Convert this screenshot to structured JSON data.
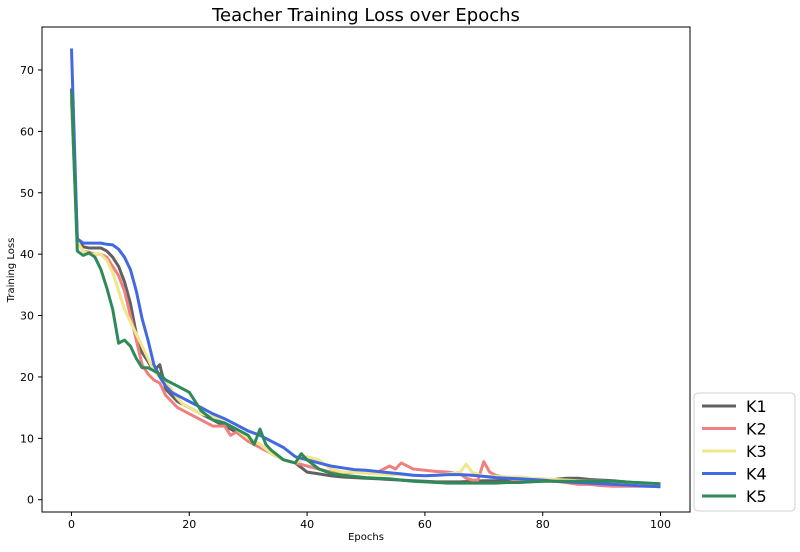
{
  "chart_data": {
    "type": "line",
    "title": "Teacher Training Loss over Epochs",
    "xlabel": "Epochs",
    "ylabel": "Training Loss",
    "xlim": [
      -5,
      105
    ],
    "ylim": [
      -2,
      77
    ],
    "xticks": [
      0,
      20,
      40,
      60,
      80,
      100
    ],
    "yticks": [
      0,
      10,
      20,
      30,
      40,
      50,
      60,
      70
    ],
    "grid": false,
    "legend_position": "lower-right-outside",
    "series": [
      {
        "name": "K1",
        "color": "#616161",
        "x": [
          0,
          1,
          2,
          3,
          4,
          5,
          6,
          7,
          8,
          9,
          10,
          11,
          12,
          13,
          14,
          15,
          16,
          17,
          18,
          19,
          20,
          22,
          24,
          26,
          28,
          30,
          32,
          34,
          36,
          38,
          40,
          42,
          44,
          46,
          48,
          50,
          52,
          54,
          56,
          58,
          60,
          62,
          64,
          66,
          68,
          70,
          72,
          74,
          76,
          78,
          80,
          82,
          84,
          86,
          88,
          90,
          92,
          94,
          96,
          98,
          100
        ],
        "y": [
          67,
          42.5,
          41.2,
          41,
          41,
          41,
          40.5,
          39.5,
          38,
          35.5,
          32,
          27,
          24,
          22.5,
          21,
          22,
          18,
          17,
          16,
          15.5,
          15,
          14,
          13,
          12,
          11,
          10,
          9,
          7.5,
          6.5,
          6,
          4.5,
          4.2,
          3.9,
          3.7,
          3.6,
          3.5,
          3.4,
          3.3,
          3.2,
          3.1,
          3,
          2.9,
          2.9,
          2.9,
          3,
          3.1,
          3.1,
          3.2,
          3.2,
          3.3,
          3.3,
          3.3,
          3.5,
          3.5,
          3.3,
          3.2,
          3.1,
          2.9,
          2.7,
          2.6,
          2.5
        ]
      },
      {
        "name": "K2",
        "color": "#f08080",
        "x": [
          0,
          1,
          2,
          3,
          4,
          5,
          6,
          7,
          8,
          9,
          10,
          11,
          12,
          13,
          14,
          15,
          16,
          17,
          18,
          19,
          20,
          22,
          24,
          26,
          27,
          28,
          30,
          32,
          34,
          36,
          38,
          40,
          42,
          44,
          46,
          48,
          50,
          52,
          54,
          55,
          56,
          58,
          60,
          62,
          64,
          66,
          67,
          68,
          69,
          70,
          71,
          72,
          74,
          76,
          78,
          80,
          82,
          84,
          86,
          88,
          90,
          92,
          94,
          96,
          98,
          100
        ],
        "y": [
          65,
          42,
          40.5,
          40.3,
          40,
          40,
          39.5,
          38,
          36.5,
          34,
          30,
          26,
          22,
          20.5,
          19.5,
          19,
          17,
          16,
          15,
          14.5,
          14,
          13,
          12,
          12,
          10.5,
          11,
          9.5,
          8.5,
          7.5,
          6.5,
          6,
          5.5,
          5,
          4.5,
          4.3,
          4.5,
          4.5,
          4.5,
          5.5,
          5,
          6,
          5,
          4.8,
          4.6,
          4.5,
          4.2,
          3.5,
          3.2,
          3.2,
          6.2,
          4.5,
          4,
          3.5,
          3,
          3,
          3,
          3,
          2.8,
          2.5,
          2.5,
          2.3,
          2.2,
          2.2,
          2.2,
          2.2,
          2.2
        ]
      },
      {
        "name": "K3",
        "color": "#f0e68c",
        "x": [
          0,
          1,
          2,
          3,
          4,
          5,
          6,
          7,
          8,
          9,
          10,
          11,
          12,
          13,
          14,
          15,
          16,
          17,
          18,
          19,
          20,
          22,
          24,
          26,
          28,
          30,
          32,
          34,
          36,
          38,
          40,
          42,
          44,
          46,
          48,
          50,
          52,
          54,
          56,
          58,
          60,
          62,
          64,
          66,
          67,
          68,
          70,
          72,
          74,
          76,
          78,
          80,
          82,
          84,
          86,
          88,
          90,
          92,
          94,
          96,
          98,
          100
        ],
        "y": [
          66,
          42,
          40.5,
          40,
          40,
          40,
          39,
          37,
          34,
          31,
          29,
          27,
          25,
          23,
          21,
          20,
          19,
          18,
          16.5,
          15.5,
          15,
          14,
          13.5,
          12.5,
          11.5,
          10,
          9,
          7.5,
          6.5,
          6,
          7,
          6.5,
          5,
          4.5,
          4.5,
          4.3,
          4.2,
          4.1,
          4.1,
          4,
          3.9,
          4,
          4.2,
          4.5,
          5.8,
          4.5,
          3.8,
          3.8,
          3.7,
          3.7,
          3.5,
          3.4,
          3.3,
          3.2,
          3.1,
          3,
          3,
          2.9,
          2.8,
          2.7,
          2.6,
          2.5
        ]
      },
      {
        "name": "K4",
        "color": "#4169e1",
        "x": [
          0,
          1,
          2,
          3,
          4,
          5,
          6,
          7,
          8,
          9,
          10,
          11,
          12,
          13,
          14,
          15,
          16,
          17,
          18,
          19,
          20,
          22,
          24,
          26,
          28,
          30,
          32,
          34,
          36,
          38,
          40,
          42,
          44,
          46,
          48,
          50,
          52,
          54,
          56,
          58,
          60,
          62,
          64,
          66,
          68,
          70,
          72,
          74,
          76,
          78,
          80,
          82,
          84,
          86,
          88,
          90,
          92,
          94,
          96,
          98,
          100
        ],
        "y": [
          73.5,
          42.5,
          41.8,
          41.8,
          41.8,
          41.8,
          41.6,
          41.5,
          40.8,
          39.5,
          37.5,
          34,
          29.5,
          26,
          22,
          20,
          18.5,
          17.5,
          17,
          16.5,
          16,
          15,
          14,
          13.2,
          12.2,
          11.2,
          10.5,
          9.5,
          8.5,
          7,
          6.5,
          6,
          5.5,
          5.2,
          4.9,
          4.8,
          4.6,
          4.4,
          4.2,
          4,
          3.9,
          4,
          4.1,
          4.1,
          4,
          3.8,
          3.6,
          3.5,
          3.4,
          3.3,
          3.2,
          3,
          2.9,
          2.8,
          2.7,
          2.6,
          2.5,
          2.4,
          2.3,
          2.2,
          2.1
        ]
      },
      {
        "name": "K5",
        "color": "#2e8b57",
        "x": [
          0,
          1,
          2,
          3,
          4,
          5,
          6,
          7,
          8,
          9,
          10,
          11,
          12,
          13,
          14,
          15,
          16,
          17,
          18,
          19,
          20,
          22,
          24,
          26,
          28,
          30,
          31,
          32,
          33,
          34,
          36,
          38,
          39,
          40,
          42,
          44,
          46,
          48,
          50,
          52,
          54,
          56,
          58,
          60,
          62,
          64,
          66,
          68,
          70,
          72,
          74,
          76,
          78,
          80,
          82,
          84,
          86,
          88,
          90,
          92,
          94,
          96,
          98,
          100
        ],
        "y": [
          66.5,
          40.5,
          39.8,
          40.2,
          39.5,
          37.5,
          34.5,
          31,
          25.5,
          26,
          25,
          23,
          21.5,
          21.5,
          21,
          20.5,
          19.5,
          19,
          18.5,
          18,
          17.5,
          14.5,
          13,
          12.5,
          11.5,
          10.5,
          9,
          11.5,
          9,
          8,
          6.5,
          6,
          7.5,
          6.5,
          5,
          4.3,
          4,
          3.8,
          3.6,
          3.5,
          3.4,
          3.2,
          3,
          2.9,
          2.8,
          2.7,
          2.7,
          2.7,
          2.7,
          2.7,
          2.8,
          2.8,
          2.9,
          3,
          3,
          3,
          3,
          3,
          3,
          3,
          2.9,
          2.8,
          2.7,
          2.6
        ]
      }
    ]
  }
}
